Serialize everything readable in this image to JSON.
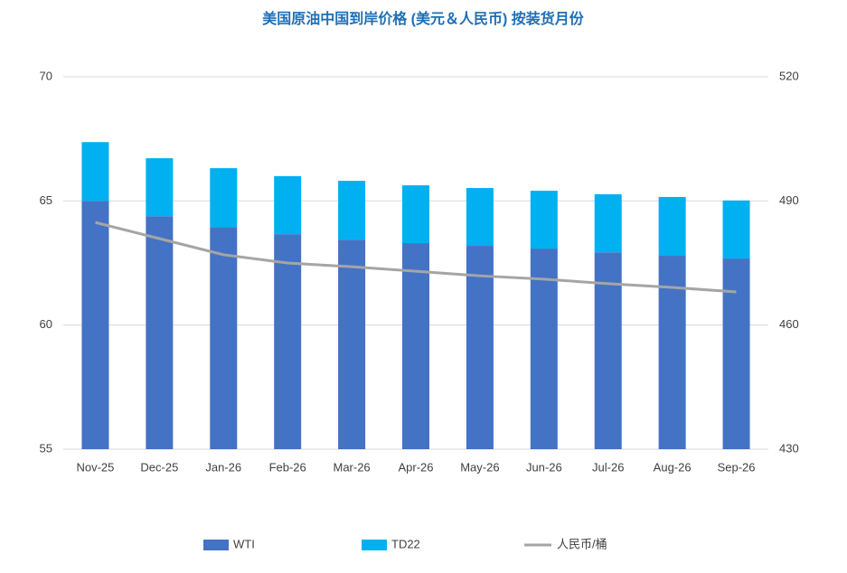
{
  "chart_data": {
    "type": "bar",
    "stacked": true,
    "title": "美国原油中国到岸价格 (美元＆人民币) 按装货月份",
    "categories": [
      "Nov-25",
      "Dec-25",
      "Jan-26",
      "Feb-26",
      "Mar-26",
      "Apr-26",
      "May-26",
      "Jun-26",
      "Jul-26",
      "Aug-26",
      "Sep-26"
    ],
    "series": [
      {
        "name": "WTI",
        "color": "#4472c4",
        "type": "bar",
        "values": [
          65.0,
          64.38,
          63.95,
          63.66,
          63.44,
          63.3,
          63.19,
          63.08,
          62.93,
          62.79,
          62.68
        ]
      },
      {
        "name": "TD22",
        "color": "#00b0f0",
        "type": "bar",
        "values": [
          2.37,
          2.34,
          2.37,
          2.34,
          2.37,
          2.33,
          2.33,
          2.33,
          2.34,
          2.37,
          2.34
        ]
      },
      {
        "name": "人民币/桶",
        "color": "#a5a5a5",
        "type": "line",
        "axis": "y2",
        "values": [
          484.8,
          480.9,
          477.0,
          475.0,
          474.1,
          473.0,
          471.9,
          471.1,
          470.0,
          469.1,
          468.0
        ]
      }
    ],
    "ylim": [
      55,
      70
    ],
    "yticks": [
      55,
      60,
      65,
      70
    ],
    "y2lim": [
      430,
      520
    ],
    "y2ticks": [
      430,
      460,
      490,
      520
    ],
    "grid": true,
    "legend": "bottom"
  }
}
